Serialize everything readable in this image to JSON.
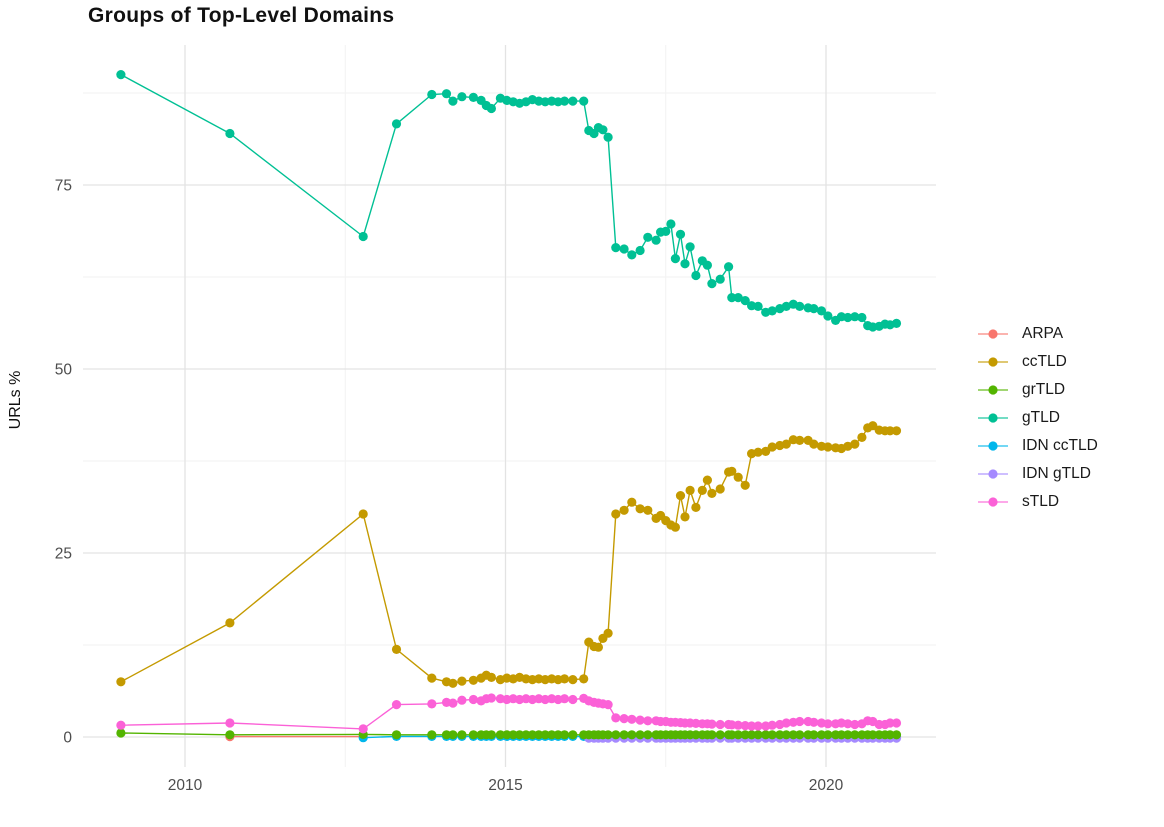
{
  "title": "Groups of Top-Level Domains",
  "legend": {
    "position": "right",
    "items": [
      {
        "label": "ARPA",
        "color": "#F8766D"
      },
      {
        "label": "ccTLD",
        "color": "#C49A00"
      },
      {
        "label": "grTLD",
        "color": "#53B400"
      },
      {
        "label": "gTLD",
        "color": "#00C094"
      },
      {
        "label": "IDN ccTLD",
        "color": "#00B6EB"
      },
      {
        "label": "IDN gTLD",
        "color": "#A58AFF"
      },
      {
        "label": "sTLD",
        "color": "#FB61D7"
      }
    ]
  },
  "chart_data": {
    "type": "line",
    "title": "Groups of Top-Level Domains",
    "xlabel": "",
    "ylabel": "URLs %",
    "x_range": [
      2008.4,
      2021.72
    ],
    "y_range": [
      -4.1,
      94.0
    ],
    "grid": true,
    "legend_position": "right",
    "x_ticks": [
      2010,
      2015,
      2020
    ],
    "x_tick_labels": [
      "2010",
      "2015",
      "2020"
    ],
    "y_ticks": [
      0,
      25,
      50,
      75
    ],
    "y_tick_labels": [
      "0",
      "25",
      "50",
      "75"
    ],
    "x_minor_gridlines": [
      2012.5,
      2017.5
    ],
    "y_minor_gridlines": [
      12.5,
      37.5,
      62.5,
      87.5
    ],
    "draw_order": [
      "ARPA",
      "IDN ccTLD",
      "IDN gTLD",
      "grTLD",
      "gTLD",
      "ccTLD",
      "sTLD"
    ],
    "series": [
      {
        "name": "ARPA",
        "color": "#F8766D",
        "x": [
          2010.7,
          2012.78
        ],
        "values": [
          0.05,
          0.05
        ]
      },
      {
        "name": "ccTLD",
        "color": "#C49A00",
        "x": [
          2009.0,
          2010.7,
          2012.78,
          2013.3,
          2013.85,
          2014.08,
          2014.18,
          2014.32,
          2014.5,
          2014.62,
          2014.7,
          2014.78,
          2014.92,
          2015.02,
          2015.12,
          2015.22,
          2015.32,
          2015.42,
          2015.52,
          2015.62,
          2015.72,
          2015.82,
          2015.92,
          2016.05,
          2016.22,
          2016.3,
          2016.38,
          2016.45,
          2016.52,
          2016.6,
          2016.72,
          2016.85,
          2016.97,
          2017.1,
          2017.22,
          2017.35,
          2017.42,
          2017.5,
          2017.58,
          2017.65,
          2017.73,
          2017.8,
          2017.88,
          2017.97,
          2018.07,
          2018.15,
          2018.22,
          2018.35,
          2018.48,
          2018.53,
          2018.63,
          2018.74,
          2018.84,
          2018.94,
          2019.06,
          2019.16,
          2019.28,
          2019.38,
          2019.49,
          2019.59,
          2019.72,
          2019.81,
          2019.93,
          2020.03,
          2020.15,
          2020.24,
          2020.34,
          2020.45,
          2020.56,
          2020.65,
          2020.73,
          2020.83,
          2020.92,
          2021.0,
          2021.1
        ],
        "values": [
          7.5,
          15.5,
          30.3,
          11.9,
          8.0,
          7.5,
          7.3,
          7.6,
          7.7,
          8.0,
          8.4,
          8.1,
          7.8,
          8.0,
          7.9,
          8.1,
          7.9,
          7.8,
          7.9,
          7.8,
          7.9,
          7.8,
          7.9,
          7.8,
          7.9,
          12.9,
          12.3,
          12.2,
          13.4,
          14.1,
          30.3,
          30.8,
          31.9,
          31.0,
          30.8,
          29.7,
          30.1,
          29.4,
          28.8,
          28.5,
          32.8,
          29.9,
          33.5,
          31.2,
          33.5,
          34.9,
          33.1,
          33.7,
          36.0,
          36.1,
          35.3,
          34.2,
          38.5,
          38.7,
          38.8,
          39.4,
          39.6,
          39.8,
          40.4,
          40.3,
          40.3,
          39.8,
          39.5,
          39.4,
          39.3,
          39.2,
          39.5,
          39.8,
          40.7,
          42.0,
          42.3,
          41.7,
          41.6,
          41.6,
          41.6
        ]
      },
      {
        "name": "grTLD",
        "color": "#53B400",
        "x": [
          2009.0,
          2010.7,
          2012.78,
          2013.3,
          2013.85,
          2014.08,
          2014.18,
          2014.32,
          2014.5,
          2014.62,
          2014.7,
          2014.78,
          2014.92,
          2015.02,
          2015.12,
          2015.22,
          2015.32,
          2015.42,
          2015.52,
          2015.62,
          2015.72,
          2015.82,
          2015.92,
          2016.05,
          2016.22,
          2016.3,
          2016.38,
          2016.45,
          2016.52,
          2016.6,
          2016.72,
          2016.85,
          2016.97,
          2017.1,
          2017.22,
          2017.35,
          2017.42,
          2017.5,
          2017.58,
          2017.65,
          2017.73,
          2017.8,
          2017.88,
          2017.97,
          2018.07,
          2018.15,
          2018.22,
          2018.35,
          2018.48,
          2018.53,
          2018.63,
          2018.74,
          2018.84,
          2018.94,
          2019.06,
          2019.16,
          2019.28,
          2019.38,
          2019.49,
          2019.59,
          2019.72,
          2019.81,
          2019.93,
          2020.03,
          2020.15,
          2020.24,
          2020.34,
          2020.45,
          2020.56,
          2020.65,
          2020.73,
          2020.83,
          2020.92,
          2021.0,
          2021.1
        ],
        "values": [
          0.55,
          0.3,
          0.35,
          0.3,
          0.3,
          0.3,
          0.3,
          0.3,
          0.3,
          0.3,
          0.3,
          0.3,
          0.3,
          0.3,
          0.3,
          0.3,
          0.3,
          0.3,
          0.3,
          0.3,
          0.3,
          0.3,
          0.3,
          0.3,
          0.3,
          0.3,
          0.3,
          0.3,
          0.3,
          0.3,
          0.3,
          0.3,
          0.3,
          0.3,
          0.3,
          0.3,
          0.3,
          0.3,
          0.3,
          0.3,
          0.3,
          0.3,
          0.3,
          0.3,
          0.3,
          0.3,
          0.3,
          0.3,
          0.3,
          0.3,
          0.3,
          0.3,
          0.3,
          0.3,
          0.3,
          0.3,
          0.3,
          0.3,
          0.3,
          0.3,
          0.3,
          0.3,
          0.3,
          0.3,
          0.3,
          0.3,
          0.3,
          0.3,
          0.3,
          0.3,
          0.3,
          0.3,
          0.3,
          0.3,
          0.3
        ]
      },
      {
        "name": "gTLD",
        "color": "#00C094",
        "x": [
          2009.0,
          2010.7,
          2012.78,
          2013.3,
          2013.85,
          2014.08,
          2014.18,
          2014.32,
          2014.5,
          2014.62,
          2014.7,
          2014.78,
          2014.92,
          2015.02,
          2015.12,
          2015.22,
          2015.32,
          2015.42,
          2015.52,
          2015.62,
          2015.72,
          2015.82,
          2015.92,
          2016.05,
          2016.22,
          2016.3,
          2016.38,
          2016.45,
          2016.52,
          2016.6,
          2016.72,
          2016.85,
          2016.97,
          2017.1,
          2017.22,
          2017.35,
          2017.42,
          2017.5,
          2017.58,
          2017.65,
          2017.73,
          2017.8,
          2017.88,
          2017.97,
          2018.07,
          2018.15,
          2018.22,
          2018.35,
          2018.48,
          2018.53,
          2018.63,
          2018.74,
          2018.84,
          2018.94,
          2019.06,
          2019.16,
          2019.28,
          2019.38,
          2019.49,
          2019.59,
          2019.72,
          2019.81,
          2019.93,
          2020.03,
          2020.15,
          2020.24,
          2020.34,
          2020.45,
          2020.56,
          2020.65,
          2020.73,
          2020.83,
          2020.92,
          2021.0,
          2021.1
        ],
        "values": [
          90,
          82,
          68,
          83.3,
          87.3,
          87.4,
          86.4,
          87.0,
          86.9,
          86.5,
          85.8,
          85.4,
          86.8,
          86.5,
          86.3,
          86.1,
          86.3,
          86.6,
          86.4,
          86.3,
          86.4,
          86.3,
          86.4,
          86.4,
          86.4,
          82.4,
          82.0,
          82.8,
          82.5,
          81.5,
          66.5,
          66.3,
          65.5,
          66.1,
          67.9,
          67.5,
          68.6,
          68.7,
          69.7,
          65.0,
          68.3,
          64.3,
          66.6,
          62.7,
          64.7,
          64.1,
          61.6,
          62.2,
          63.9,
          59.7,
          59.7,
          59.3,
          58.6,
          58.5,
          57.7,
          57.9,
          58.2,
          58.5,
          58.8,
          58.5,
          58.3,
          58.2,
          57.9,
          57.2,
          56.6,
          57.1,
          57.0,
          57.1,
          57.0,
          55.9,
          55.7,
          55.8,
          56.1,
          56.0,
          56.2
        ]
      },
      {
        "name": "IDN ccTLD",
        "color": "#00B6EB",
        "x": [
          2012.78,
          2013.3,
          2013.85,
          2014.08,
          2014.18,
          2014.32,
          2014.5,
          2014.62,
          2014.7,
          2014.78,
          2014.92,
          2015.02,
          2015.12,
          2015.22,
          2015.32,
          2015.42,
          2015.52,
          2015.62,
          2015.72,
          2015.82,
          2015.92,
          2016.05,
          2016.22,
          2016.3,
          2016.38,
          2016.45,
          2016.52,
          2016.6,
          2016.72,
          2016.85,
          2016.97,
          2017.1,
          2017.22,
          2017.35,
          2017.42,
          2017.5,
          2017.58,
          2017.65,
          2017.73,
          2017.8,
          2017.88,
          2017.97,
          2018.07,
          2018.15,
          2018.22,
          2018.35,
          2018.48,
          2018.53,
          2018.63,
          2018.74,
          2018.84,
          2018.94,
          2019.06,
          2019.16,
          2019.28,
          2019.38,
          2019.49,
          2019.59,
          2019.72,
          2019.81,
          2019.93,
          2020.03,
          2020.15,
          2020.24,
          2020.34,
          2020.45,
          2020.56,
          2020.65,
          2020.73,
          2020.83,
          2020.92,
          2021.0,
          2021.1
        ],
        "values": [
          -0.1,
          0.08,
          0.08,
          0.08,
          0.08,
          0.08,
          0.08,
          0.08,
          0.08,
          0.08,
          0.08,
          0.08,
          0.08,
          0.08,
          0.08,
          0.08,
          0.08,
          0.08,
          0.08,
          0.08,
          0.08,
          0.08,
          0.08,
          0.08,
          0.08,
          0.08,
          0.08,
          0.08,
          0.08,
          0.08,
          0.08,
          0.08,
          0.08,
          0.08,
          0.08,
          0.08,
          0.08,
          0.08,
          0.08,
          0.08,
          0.08,
          0.08,
          0.08,
          0.08,
          0.08,
          0.08,
          0.08,
          0.08,
          0.08,
          0.08,
          0.08,
          0.08,
          0.08,
          0.08,
          0.08,
          0.08,
          0.08,
          0.08,
          0.08,
          0.08,
          0.08,
          0.08,
          0.08,
          0.08,
          0.08,
          0.08,
          0.08,
          0.08,
          0.08,
          0.08,
          0.08,
          0.08,
          0.08
        ]
      },
      {
        "name": "IDN gTLD",
        "color": "#A58AFF",
        "x": [
          2016.3,
          2016.38,
          2016.45,
          2016.52,
          2016.6,
          2016.72,
          2016.85,
          2016.97,
          2017.1,
          2017.22,
          2017.35,
          2017.42,
          2017.5,
          2017.58,
          2017.65,
          2017.73,
          2017.8,
          2017.88,
          2017.97,
          2018.07,
          2018.15,
          2018.22,
          2018.35,
          2018.48,
          2018.53,
          2018.63,
          2018.74,
          2018.84,
          2018.94,
          2019.06,
          2019.16,
          2019.28,
          2019.38,
          2019.49,
          2019.59,
          2019.72,
          2019.81,
          2019.93,
          2020.03,
          2020.15,
          2020.24,
          2020.34,
          2020.45,
          2020.56,
          2020.65,
          2020.73,
          2020.83,
          2020.92,
          2021.0,
          2021.1
        ],
        "values": [
          -0.15,
          -0.15,
          -0.15,
          -0.15,
          -0.15,
          -0.15,
          -0.15,
          -0.15,
          -0.15,
          -0.15,
          -0.15,
          -0.15,
          -0.15,
          -0.15,
          -0.15,
          -0.15,
          -0.15,
          -0.15,
          -0.15,
          -0.15,
          -0.15,
          -0.15,
          -0.15,
          -0.15,
          -0.15,
          -0.15,
          -0.15,
          -0.15,
          -0.15,
          -0.15,
          -0.15,
          -0.15,
          -0.15,
          -0.15,
          -0.15,
          -0.15,
          -0.15,
          -0.15,
          -0.15,
          -0.15,
          -0.15,
          -0.15,
          -0.15,
          -0.15,
          -0.15,
          -0.15,
          -0.15,
          -0.15,
          -0.15,
          -0.15
        ]
      },
      {
        "name": "sTLD",
        "color": "#FB61D7",
        "x": [
          2009.0,
          2010.7,
          2012.78,
          2013.3,
          2013.85,
          2014.08,
          2014.18,
          2014.32,
          2014.5,
          2014.62,
          2014.7,
          2014.78,
          2014.92,
          2015.02,
          2015.12,
          2015.22,
          2015.32,
          2015.42,
          2015.52,
          2015.62,
          2015.72,
          2015.82,
          2015.92,
          2016.05,
          2016.22,
          2016.3,
          2016.38,
          2016.45,
          2016.52,
          2016.6,
          2016.72,
          2016.85,
          2016.97,
          2017.1,
          2017.22,
          2017.35,
          2017.42,
          2017.5,
          2017.58,
          2017.65,
          2017.73,
          2017.8,
          2017.88,
          2017.97,
          2018.07,
          2018.15,
          2018.22,
          2018.35,
          2018.48,
          2018.53,
          2018.63,
          2018.74,
          2018.84,
          2018.94,
          2019.06,
          2019.16,
          2019.28,
          2019.38,
          2019.49,
          2019.59,
          2019.72,
          2019.81,
          2019.93,
          2020.03,
          2020.15,
          2020.24,
          2020.34,
          2020.45,
          2020.56,
          2020.65,
          2020.73,
          2020.83,
          2020.92,
          2021.0,
          2021.1
        ],
        "values": [
          1.6,
          1.9,
          1.1,
          4.4,
          4.5,
          4.7,
          4.6,
          5.0,
          5.1,
          4.9,
          5.2,
          5.3,
          5.2,
          5.1,
          5.2,
          5.1,
          5.2,
          5.1,
          5.2,
          5.1,
          5.2,
          5.1,
          5.2,
          5.1,
          5.25,
          4.9,
          4.7,
          4.6,
          4.5,
          4.4,
          2.6,
          2.5,
          2.4,
          2.3,
          2.2,
          2.2,
          2.1,
          2.1,
          2.0,
          2.0,
          1.95,
          1.9,
          1.9,
          1.85,
          1.8,
          1.8,
          1.75,
          1.7,
          1.7,
          1.65,
          1.6,
          1.55,
          1.5,
          1.5,
          1.5,
          1.6,
          1.7,
          1.9,
          2.0,
          2.1,
          2.1,
          2.0,
          1.9,
          1.8,
          1.8,
          1.9,
          1.8,
          1.7,
          1.8,
          2.2,
          2.1,
          1.7,
          1.7,
          1.9,
          1.9
        ]
      }
    ]
  }
}
